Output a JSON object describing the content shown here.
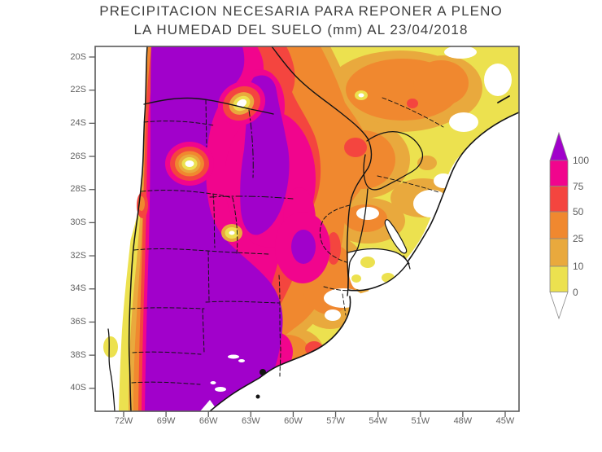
{
  "title": {
    "line1": "PRECIPITACION NECESARIA PARA REPONER A PLENO",
    "line2": "LA HUMEDAD DEL SUELO (mm) AL 23/04/2018"
  },
  "axes": {
    "lat_labels": [
      "20S",
      "22S",
      "24S",
      "26S",
      "28S",
      "30S",
      "32S",
      "34S",
      "36S",
      "38S",
      "40S"
    ],
    "lon_labels": [
      "72W",
      "69W",
      "66W",
      "63W",
      "60W",
      "57W",
      "54W",
      "51W",
      "48W",
      "45W"
    ]
  },
  "legend": {
    "tick_labels": [
      "100",
      "75",
      "50",
      "25",
      "10",
      "0"
    ]
  },
  "palette": {
    "purple": "#A101CB",
    "pink": "#F1058D",
    "red": "#F4453F",
    "orange": "#F0882F",
    "amber": "#E9A93D",
    "yellow": "#ECE14F",
    "white": "#FFFFFF"
  },
  "chart_data": {
    "type": "heatmap",
    "title": "PRECIPITACION NECESARIA PARA REPONER A PLENO LA HUMEDAD DEL SUELO (mm) AL 23/04/2018",
    "x_ticks": [
      "72W",
      "69W",
      "66W",
      "63W",
      "60W",
      "57W",
      "54W",
      "51W",
      "48W",
      "45W"
    ],
    "y_ticks": [
      "20S",
      "22S",
      "24S",
      "26S",
      "28S",
      "30S",
      "32S",
      "34S",
      "36S",
      "38S",
      "40S"
    ],
    "legend_position": "right",
    "value_bins_mm": [
      {
        "label": "0",
        "min": 0,
        "max": 10,
        "color": "#ECE14F"
      },
      {
        "label": "10",
        "min": 10,
        "max": 25,
        "color": "#E9A93D"
      },
      {
        "label": "25",
        "min": 25,
        "max": 50,
        "color": "#F0882F"
      },
      {
        "label": "50",
        "min": 50,
        "max": 75,
        "color": "#F4453F"
      },
      {
        "label": "75",
        "min": 75,
        "max": 100,
        "color": "#F1058D"
      },
      {
        "label": "100",
        "min": 100,
        "max": null,
        "color": "#A101CB"
      }
    ],
    "description": "Filled contour map over Argentina and neighbours: values above 100 mm (purple) across western and southern-central Argentina, ringed by 75-100 (magenta) and 50-75 (red); 25-50 (orange) over the Chaco, Paraguay and NE Argentina; 0-25 (yellow/amber) over S Brazil; near 0 (white) over Uruguay, coastal Brazil and Chile."
  }
}
